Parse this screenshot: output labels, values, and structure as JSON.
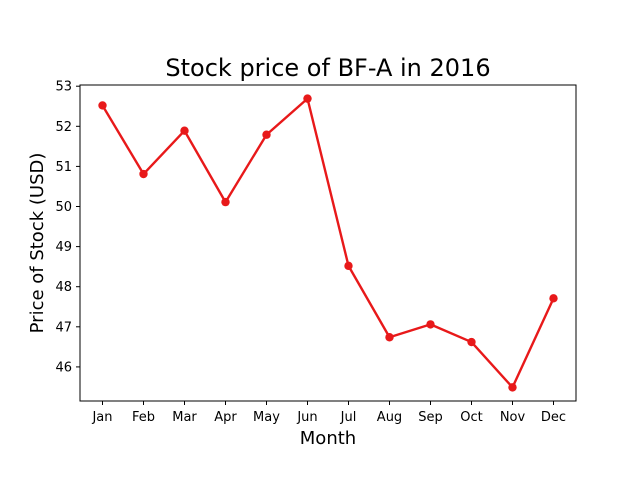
{
  "chart_data": {
    "type": "line",
    "title": "Stock price of BF-A in 2016",
    "xlabel": "Month",
    "ylabel": "Price of Stock (USD)",
    "categories": [
      "Jan",
      "Feb",
      "Mar",
      "Apr",
      "May",
      "Jun",
      "Jul",
      "Aug",
      "Sep",
      "Oct",
      "Nov",
      "Dec"
    ],
    "values": [
      52.52,
      50.81,
      51.89,
      50.11,
      51.79,
      52.69,
      48.52,
      46.74,
      47.06,
      46.62,
      45.49,
      47.71
    ],
    "ylim": [
      45.15,
      53.03
    ],
    "yticks": [
      46,
      47,
      48,
      49,
      50,
      51,
      52,
      53
    ],
    "grid": false,
    "legend": "none",
    "line_color": "#e8191a"
  }
}
